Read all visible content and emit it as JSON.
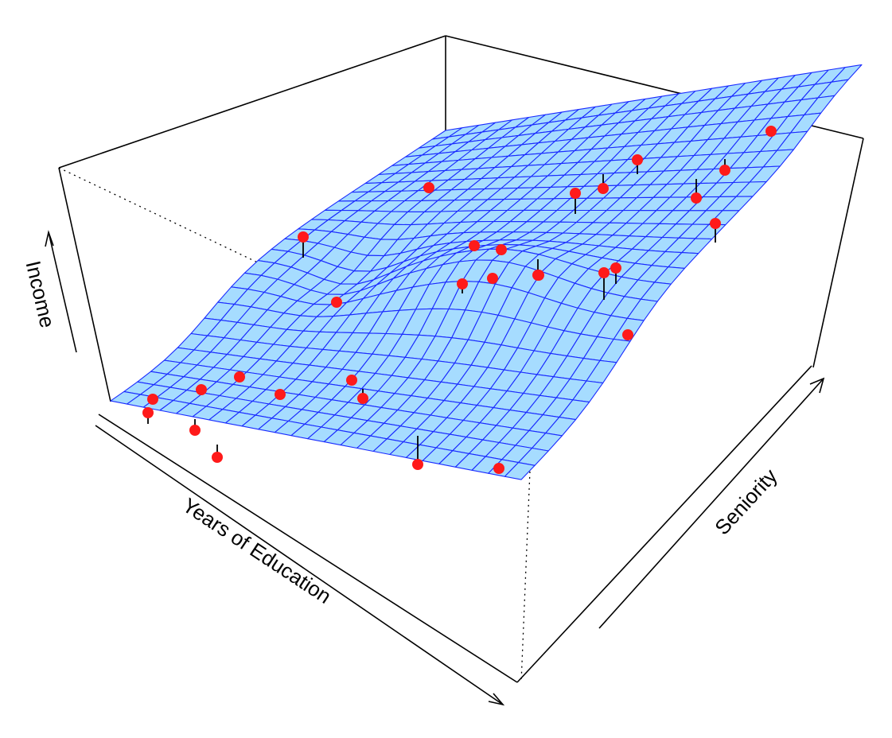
{
  "chart_data": {
    "type": "surface3d",
    "title": "",
    "xlabel": "Years of Education",
    "ylabel": "Seniority",
    "zlabel": "Income",
    "grid": false,
    "legend": "none",
    "colors": {
      "surface_fill": "#a6dcff",
      "surface_mesh": "#1a2bff",
      "points": "#ff1a1a",
      "residuals": "#000000",
      "box": "#000000"
    },
    "surface_grid": {
      "nu": 25,
      "nv": 25
    },
    "surface": "smooth non-linear fit of Income on Years of Education and Seniority",
    "observations": 30
  }
}
